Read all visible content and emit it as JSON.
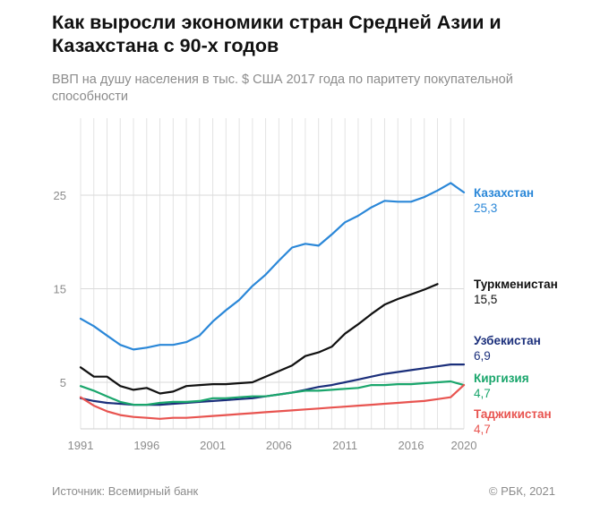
{
  "title": "Как выросли экономики стран Средней Азии и Казахстана с 90-х годов",
  "subtitle": "ВВП на душу населения в тыс. $ США 2017 года по паритету покупательной способности",
  "source": "Источник: Всемирный банк",
  "copyright": "© РБК, 2021",
  "chart_data": {
    "type": "line",
    "title": "Как выросли экономики стран Средней Азии и Казахстана с 90-х годов",
    "ylabel": "ВВП на душу населения в тыс. $ США 2017 года по паритету покупательной способности",
    "xlabel": "",
    "x_start": 1991,
    "x_end": 2020,
    "xticks": [
      1991,
      1996,
      2001,
      2006,
      2011,
      2016,
      2020
    ],
    "yticks": [
      5,
      15,
      25
    ],
    "ylim": [
      0,
      30
    ],
    "grid": "vertical lines each year; horizontal lines at y ticks",
    "series": [
      {
        "name": "Казахстан",
        "value_label": "25,3",
        "color": "#2a87d8",
        "values": [
          11.8,
          11.0,
          10.0,
          9.0,
          8.5,
          8.7,
          9.0,
          9.0,
          9.3,
          10.0,
          11.5,
          12.7,
          13.8,
          15.3,
          16.5,
          18.0,
          19.4,
          19.8,
          19.6,
          20.8,
          22.1,
          22.8,
          23.7,
          24.4,
          24.3,
          24.3,
          24.8,
          25.5,
          26.3,
          25.3
        ]
      },
      {
        "name": "Туркменистан",
        "value_label": "15,5",
        "color": "#111111",
        "values": [
          6.6,
          5.6,
          5.6,
          4.6,
          4.2,
          4.4,
          3.8,
          4.0,
          4.6,
          4.7,
          4.8,
          4.8,
          4.9,
          5.0,
          5.6,
          6.2,
          6.8,
          7.8,
          8.2,
          8.8,
          10.2,
          11.2,
          12.3,
          13.3,
          13.9,
          14.4,
          14.9,
          15.5
        ]
      },
      {
        "name": "Узбекистан",
        "value_label": "6,9",
        "color": "#1b2f7b",
        "values": [
          3.3,
          3.0,
          2.8,
          2.7,
          2.6,
          2.6,
          2.6,
          2.7,
          2.8,
          2.9,
          3.0,
          3.1,
          3.2,
          3.3,
          3.5,
          3.7,
          3.9,
          4.2,
          4.5,
          4.7,
          5.0,
          5.3,
          5.6,
          5.9,
          6.1,
          6.3,
          6.5,
          6.7,
          6.9,
          6.9
        ]
      },
      {
        "name": "Киргизия",
        "value_label": "4,7",
        "color": "#1aa66c",
        "values": [
          4.6,
          4.1,
          3.5,
          2.9,
          2.6,
          2.6,
          2.8,
          2.9,
          2.9,
          3.0,
          3.3,
          3.3,
          3.4,
          3.5,
          3.5,
          3.7,
          3.9,
          4.1,
          4.1,
          4.2,
          4.3,
          4.4,
          4.7,
          4.7,
          4.8,
          4.8,
          4.9,
          5.0,
          5.1,
          4.7
        ]
      },
      {
        "name": "Таджикистан",
        "value_label": "4,7",
        "color": "#e85450",
        "values": [
          3.4,
          2.5,
          1.9,
          1.5,
          1.3,
          1.2,
          1.1,
          1.2,
          1.2,
          1.3,
          1.4,
          1.5,
          1.6,
          1.7,
          1.8,
          1.9,
          2.0,
          2.1,
          2.2,
          2.3,
          2.4,
          2.5,
          2.6,
          2.7,
          2.8,
          2.9,
          3.0,
          3.2,
          3.4,
          4.7
        ]
      }
    ]
  }
}
